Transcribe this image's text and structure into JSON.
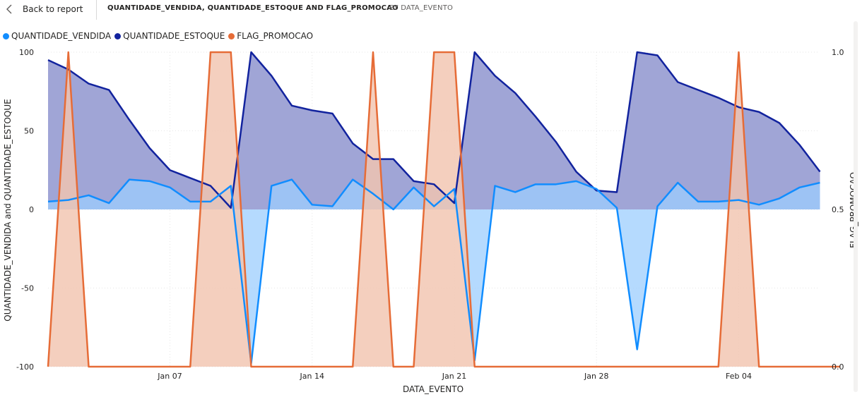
{
  "header": {
    "back_label": "Back to report",
    "title": "QUANTIDADE_VENDIDA, QUANTIDADE_ESTOQUE AND FLAG_PROMOCAO",
    "subtitle": "BY DATA_EVENTO"
  },
  "chart_data": {
    "type": "area",
    "x_start": "Jan 01",
    "x_dates": [
      "Jan 01",
      "Jan 02",
      "Jan 03",
      "Jan 04",
      "Jan 05",
      "Jan 06",
      "Jan 07",
      "Jan 08",
      "Jan 09",
      "Jan 10",
      "Jan 11",
      "Jan 12",
      "Jan 13",
      "Jan 14",
      "Jan 15",
      "Jan 16",
      "Jan 17",
      "Jan 18",
      "Jan 19",
      "Jan 20",
      "Jan 21",
      "Jan 22",
      "Jan 23",
      "Jan 24",
      "Jan 25",
      "Jan 26",
      "Jan 27",
      "Jan 28",
      "Jan 29",
      "Jan 30",
      "Jan 31",
      "Feb 01",
      "Feb 02",
      "Feb 03",
      "Feb 04",
      "Feb 05",
      "Feb 06",
      "Feb 07",
      "Feb 08",
      "Feb 09"
    ],
    "xlabel": "DATA_EVENTO",
    "ylabel_left": "QUANTIDADE_VENDIDA and QUANTIDADE_ESTOQUE",
    "ylabel_right": "FLAG_PROMOCAO",
    "x_ticks": [
      "Jan 07",
      "Jan 14",
      "Jan 21",
      "Jan 28",
      "Feb 04"
    ],
    "y_left_ticks": [
      "100",
      "50",
      "0",
      "-50",
      "-100"
    ],
    "y_right_ticks": [
      "1.0",
      "0.5",
      "0.0"
    ],
    "ylim_left": [
      -100,
      100
    ],
    "ylim_right": [
      0,
      1
    ],
    "grid": true,
    "legend_position": "top-left",
    "series": [
      {
        "name": "QUANTIDADE_VENDIDA",
        "color": "#118dff",
        "fill_color": "#9ccdfe",
        "axis": "left",
        "values": [
          5,
          6,
          9,
          4,
          19,
          18,
          14,
          5,
          5,
          15,
          -98,
          15,
          19,
          3,
          2,
          19,
          10,
          0,
          14,
          2,
          13,
          -96,
          15,
          11,
          16,
          16,
          18,
          13,
          1,
          -89,
          2,
          17,
          5,
          5,
          6,
          3,
          7,
          14,
          17,
          null
        ]
      },
      {
        "name": "QUANTIDADE_ESTOQUE",
        "color": "#12239e",
        "fill_color": "#a0a5d6",
        "axis": "left",
        "values": [
          95,
          89,
          80,
          76,
          57,
          39,
          25,
          20,
          15,
          1,
          100,
          85,
          66,
          63,
          61,
          42,
          32,
          32,
          18,
          16,
          4,
          100,
          85,
          74,
          59,
          43,
          24,
          12,
          11,
          100,
          98,
          81,
          76,
          71,
          65,
          62,
          55,
          41,
          24,
          null
        ]
      },
      {
        "name": "FLAG_PROMOCAO",
        "color": "#e66c37",
        "fill_color": "#f2c4b0",
        "axis": "right",
        "values": [
          0,
          1,
          0,
          0,
          0,
          0,
          0,
          0,
          1,
          1,
          0,
          0,
          0,
          0,
          0,
          0,
          1,
          0,
          0,
          1,
          1,
          0,
          0,
          0,
          0,
          0,
          0,
          0,
          0,
          0,
          0,
          0,
          0,
          0,
          1,
          0,
          0,
          0,
          0,
          0
        ]
      }
    ]
  }
}
